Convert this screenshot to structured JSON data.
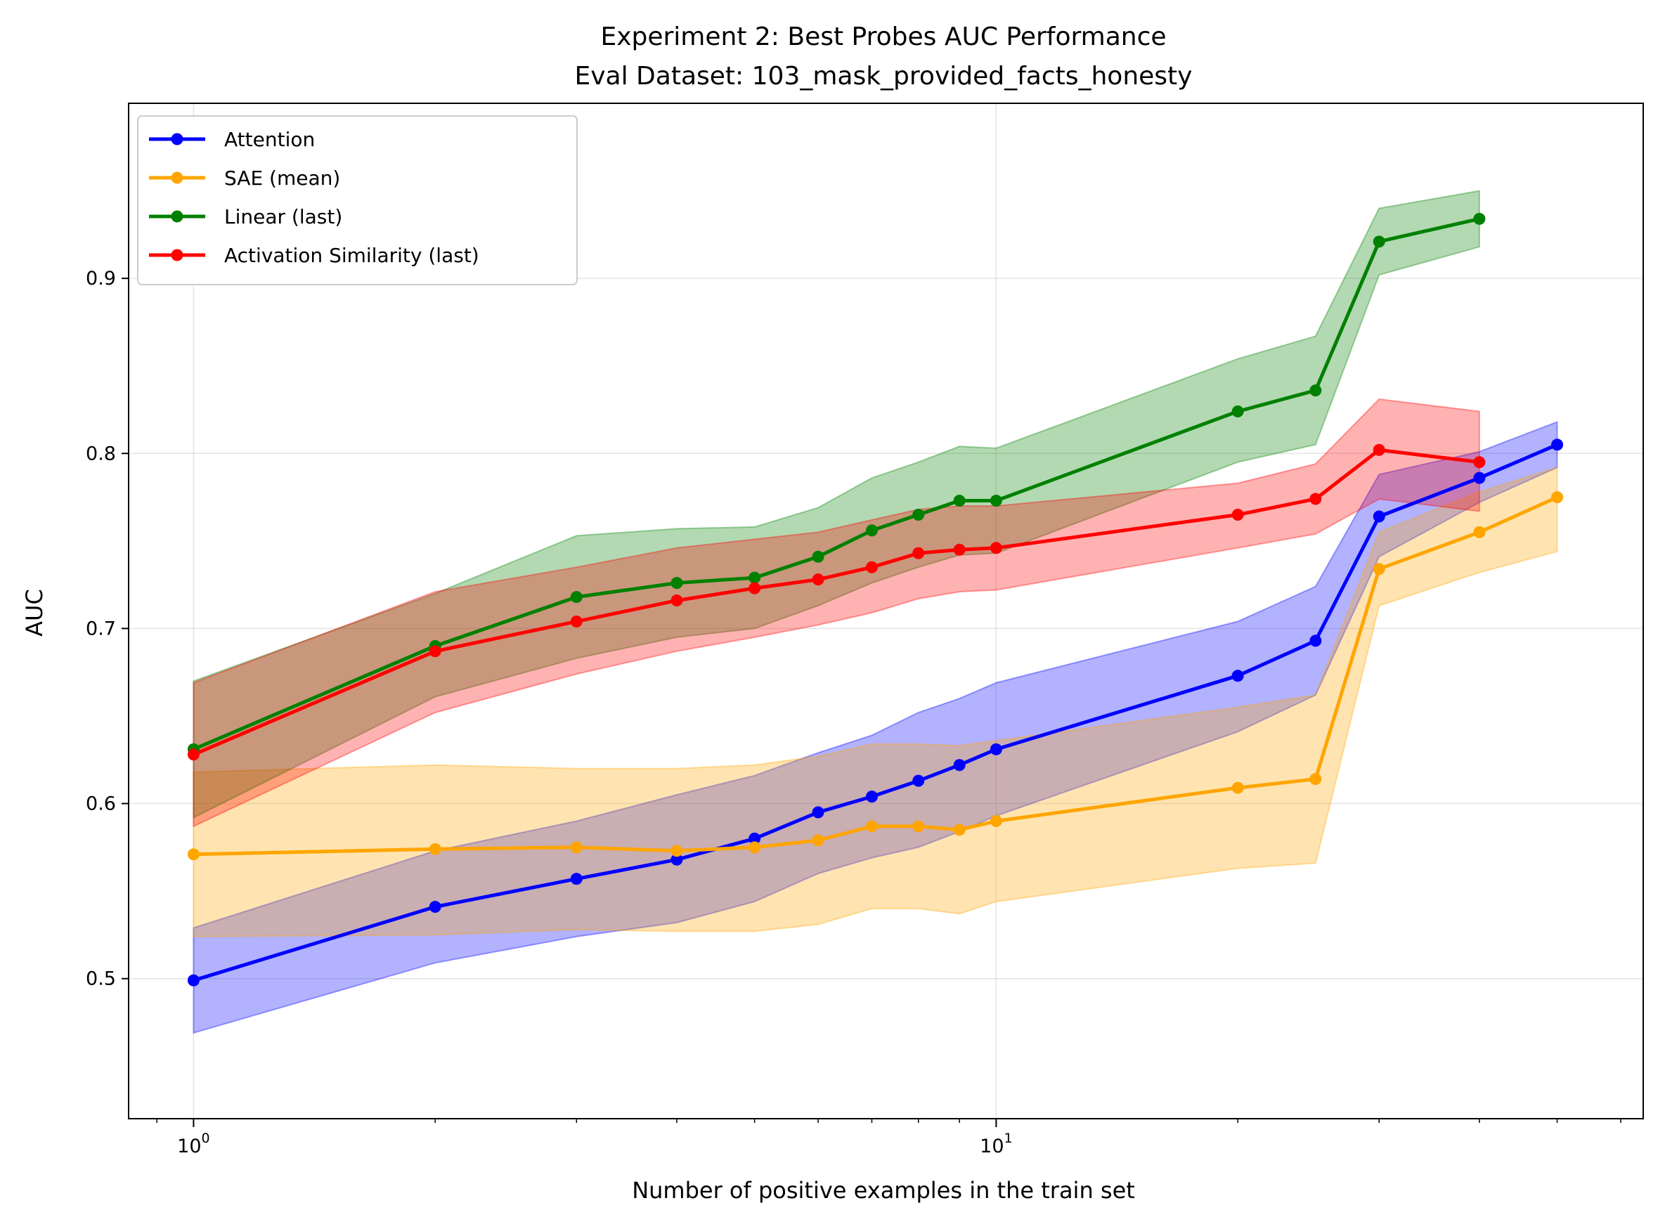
{
  "chart_data": {
    "type": "line",
    "title": "Experiment 2: Best Probes AUC Performance",
    "subtitle": "Eval Dataset: 103_mask_provided_facts_honesty",
    "xlabel": "Number of positive examples in the train set",
    "ylabel": "AUC",
    "xscale": "log",
    "xlim": [
      0.83,
      64
    ],
    "ylim": [
      0.42,
      1.0
    ],
    "yticks": [
      0.5,
      0.6,
      0.7,
      0.8,
      0.9
    ],
    "ytick_labels": [
      "0.5",
      "0.6",
      "0.7",
      "0.8",
      "0.9"
    ],
    "xtick_labels": [
      {
        "base": "10",
        "exp": "0"
      },
      {
        "base": "10",
        "exp": "1"
      }
    ],
    "grid": true,
    "legend_position": "top-left",
    "series": [
      {
        "name": "Attention",
        "color": "#0000ff",
        "x": [
          1,
          2,
          3,
          4,
          5,
          6,
          7,
          8,
          9,
          10,
          20,
          25,
          30,
          40,
          50
        ],
        "y": [
          0.499,
          0.541,
          0.557,
          0.568,
          0.58,
          0.595,
          0.604,
          0.613,
          0.622,
          0.631,
          0.673,
          0.693,
          0.764,
          0.786,
          0.805
        ],
        "upper": [
          0.529,
          0.573,
          0.59,
          0.605,
          0.616,
          0.629,
          0.639,
          0.652,
          0.66,
          0.669,
          0.704,
          0.724,
          0.788,
          0.801,
          0.818
        ],
        "lower": [
          0.469,
          0.509,
          0.524,
          0.532,
          0.544,
          0.56,
          0.569,
          0.575,
          0.584,
          0.593,
          0.641,
          0.662,
          0.741,
          0.772,
          0.792
        ]
      },
      {
        "name": "SAE (mean)",
        "color": "#ffa500",
        "x": [
          1,
          2,
          3,
          4,
          5,
          6,
          7,
          8,
          9,
          10,
          20,
          25,
          30,
          40,
          50
        ],
        "y": [
          0.571,
          0.574,
          0.575,
          0.573,
          0.575,
          0.579,
          0.587,
          0.587,
          0.585,
          0.59,
          0.609,
          0.614,
          0.734,
          0.755,
          0.775
        ],
        "upper": [
          0.618,
          0.622,
          0.62,
          0.62,
          0.622,
          0.627,
          0.634,
          0.634,
          0.633,
          0.636,
          0.655,
          0.662,
          0.755,
          0.778,
          0.792
        ],
        "lower": [
          0.524,
          0.525,
          0.528,
          0.527,
          0.527,
          0.531,
          0.54,
          0.54,
          0.537,
          0.544,
          0.563,
          0.566,
          0.713,
          0.732,
          0.744
        ]
      },
      {
        "name": "Linear (last)",
        "color": "#008000",
        "x": [
          1,
          2,
          3,
          4,
          5,
          6,
          7,
          8,
          9,
          10,
          20,
          25,
          30,
          40
        ],
        "y": [
          0.631,
          0.69,
          0.718,
          0.726,
          0.729,
          0.741,
          0.756,
          0.765,
          0.773,
          0.773,
          0.824,
          0.836,
          0.921,
          0.934
        ],
        "upper": [
          0.67,
          0.72,
          0.753,
          0.757,
          0.758,
          0.769,
          0.786,
          0.795,
          0.804,
          0.803,
          0.854,
          0.867,
          0.94,
          0.95
        ],
        "lower": [
          0.592,
          0.661,
          0.683,
          0.695,
          0.7,
          0.713,
          0.726,
          0.735,
          0.742,
          0.743,
          0.795,
          0.805,
          0.902,
          0.918
        ]
      },
      {
        "name": "Activation Similarity (last)",
        "color": "#ff0000",
        "x": [
          1,
          2,
          3,
          4,
          5,
          6,
          7,
          8,
          9,
          10,
          20,
          25,
          30,
          40
        ],
        "y": [
          0.628,
          0.687,
          0.704,
          0.716,
          0.723,
          0.728,
          0.735,
          0.743,
          0.745,
          0.746,
          0.765,
          0.774,
          0.802,
          0.795
        ],
        "upper": [
          0.669,
          0.721,
          0.735,
          0.746,
          0.751,
          0.755,
          0.762,
          0.768,
          0.77,
          0.77,
          0.783,
          0.794,
          0.831,
          0.824
        ],
        "lower": [
          0.587,
          0.652,
          0.674,
          0.687,
          0.695,
          0.702,
          0.709,
          0.717,
          0.721,
          0.722,
          0.746,
          0.754,
          0.774,
          0.767
        ]
      }
    ]
  }
}
